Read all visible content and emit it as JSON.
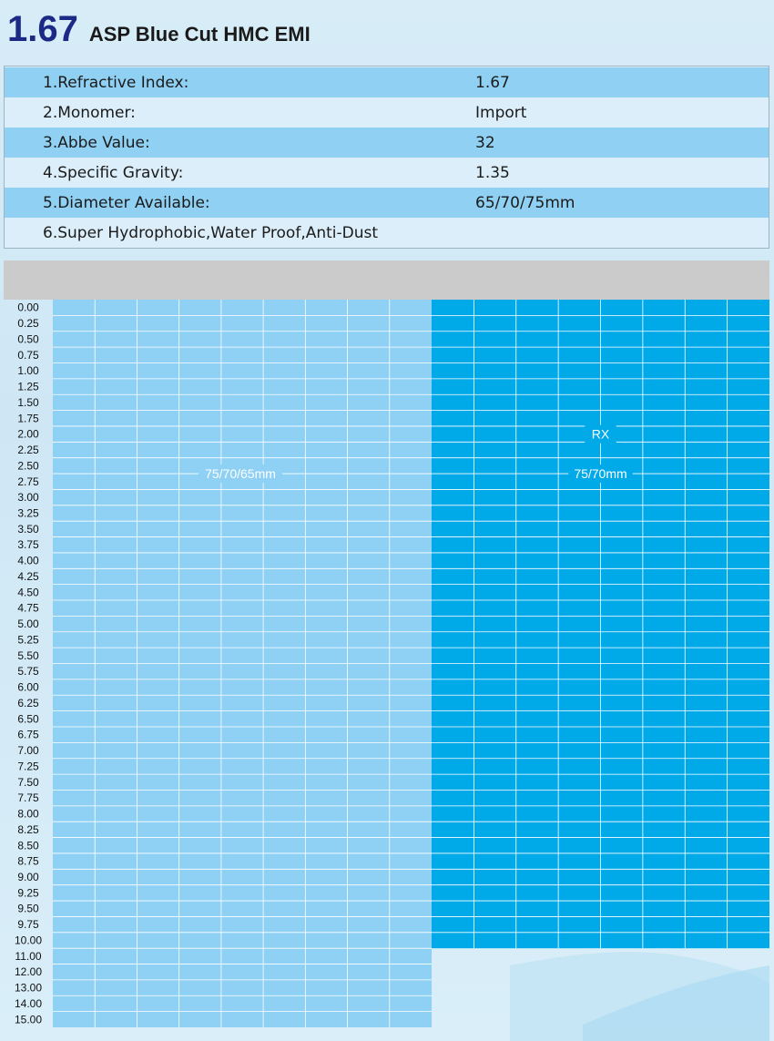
{
  "title": {
    "number": "1.67",
    "name": "ASP Blue Cut HMC EMI"
  },
  "specs": [
    {
      "label": "1.Refractive Index:",
      "value": "1.67"
    },
    {
      "label": "2.Monomer:",
      "value": "Import"
    },
    {
      "label": "3.Abbe Value:",
      "value": "32"
    },
    {
      "label": "4.Specific Gravity:",
      "value": "1.35"
    },
    {
      "label": "5.Diameter Available:",
      "value": "65/70/75mm"
    },
    {
      "label": "6.Super Hydrophobic,Water Proof,Anti-Dust",
      "value": ""
    }
  ],
  "colors": {
    "spec_alt_row": "#8fd0f3",
    "spec_plain_row": "#dbeef9",
    "stock_area": "#8ed1f4",
    "rx_area": "#00a9e8",
    "grid_line": "#ffffff",
    "header_band": "#cbcbcb"
  },
  "chart_data": {
    "type": "table",
    "row_labels": [
      "0.00",
      "0.25",
      "0.50",
      "0.75",
      "1.00",
      "1.25",
      "1.50",
      "1.75",
      "2.00",
      "2.25",
      "2.50",
      "2.75",
      "3.00",
      "3.25",
      "3.50",
      "3.75",
      "4.00",
      "4.25",
      "4.50",
      "4.75",
      "5.00",
      "5.25",
      "5.50",
      "5.75",
      "6.00",
      "6.25",
      "6.50",
      "6.75",
      "7.00",
      "7.25",
      "7.50",
      "7.75",
      "8.00",
      "8.25",
      "8.50",
      "8.75",
      "9.00",
      "9.25",
      "9.50",
      "9.75",
      "10.00",
      "11.00",
      "12.00",
      "13.00",
      "14.00",
      "15.00"
    ],
    "regions": [
      {
        "name": "stock",
        "label": "75/70/65mm",
        "sublabel": "",
        "row_from": "0.00",
        "row_to": "15.00"
      },
      {
        "name": "rx",
        "label": "75/70mm",
        "sublabel": "RX",
        "row_from": "0.00",
        "row_to": "10.00"
      }
    ]
  }
}
